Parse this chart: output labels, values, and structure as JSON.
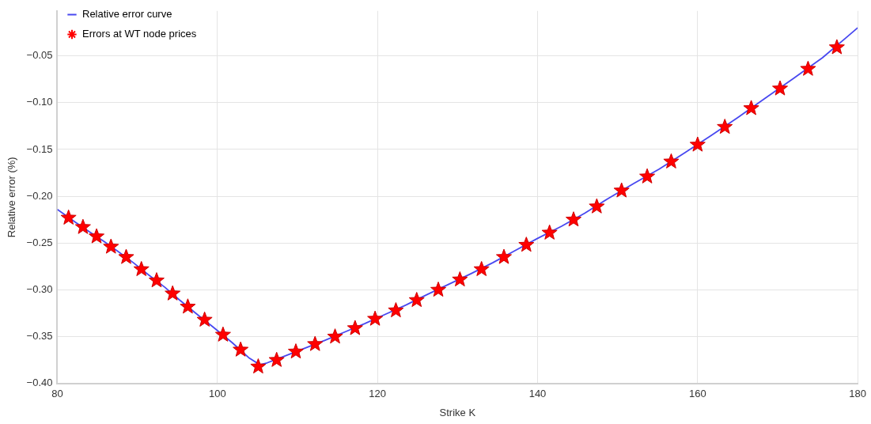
{
  "chart_data": {
    "type": "line",
    "xlabel": "Strike K",
    "ylabel": "Relative error (%)",
    "xlim": [
      80,
      180
    ],
    "xticks": [
      80,
      100,
      120,
      140,
      160,
      180
    ],
    "ylim": [
      -0.4,
      -0.002
    ],
    "yticks": [
      {
        "value": -0.4,
        "label": "−0.40"
      },
      {
        "value": -0.35,
        "label": "−0.35"
      },
      {
        "value": -0.3,
        "label": "−0.30"
      },
      {
        "value": -0.25,
        "label": "−0.25"
      },
      {
        "value": -0.2,
        "label": "−0.20"
      },
      {
        "value": -0.15,
        "label": "−0.15"
      },
      {
        "value": -0.1,
        "label": "−0.10"
      },
      {
        "value": -0.05,
        "label": "−0.05"
      }
    ],
    "grid": true,
    "legend": "top left",
    "series": [
      {
        "name": "Relative error curve",
        "color": "#4848f0",
        "line_style": "solid",
        "x": [
          80,
          82.3,
          84.0,
          85.8,
          87.6,
          89.5,
          91.4,
          93.4,
          95.3,
          97.3,
          99.5,
          101.8,
          104.0,
          105.3,
          106.2,
          108.6,
          111.0,
          113.4,
          115.9,
          118.4,
          121.0,
          123.6,
          126.2,
          128.9,
          131.6,
          134.4,
          137.2,
          140.0,
          143.0,
          145.9,
          148.9,
          152.1,
          155.2,
          158.3,
          161.7,
          165.0,
          168.5,
          172.0,
          175.6,
          178.5,
          180
        ],
        "values": [
          -0.214,
          -0.228,
          -0.238,
          -0.248,
          -0.259,
          -0.271,
          -0.284,
          -0.297,
          -0.311,
          -0.325,
          -0.34,
          -0.356,
          -0.373,
          -0.38,
          -0.378,
          -0.37,
          -0.362,
          -0.354,
          -0.345,
          -0.336,
          -0.326,
          -0.316,
          -0.305,
          -0.294,
          -0.283,
          -0.271,
          -0.258,
          -0.245,
          -0.232,
          -0.218,
          -0.202,
          -0.186,
          -0.171,
          -0.154,
          -0.135,
          -0.116,
          -0.095,
          -0.074,
          -0.052,
          -0.031,
          -0.02
        ]
      },
      {
        "name": "Errors at WT node prices",
        "type": "scatter",
        "color": "#ff0000",
        "marker": "star",
        "x": [
          81.4,
          83.2,
          84.9,
          86.7,
          88.6,
          90.5,
          92.4,
          94.4,
          96.3,
          98.4,
          100.7,
          102.9,
          105.1,
          107.4,
          109.8,
          112.2,
          114.7,
          117.2,
          119.7,
          122.3,
          124.9,
          127.6,
          130.3,
          133.0,
          135.8,
          138.6,
          141.5,
          144.5,
          147.4,
          150.5,
          153.7,
          156.7,
          160.0,
          163.4,
          166.7,
          170.3,
          173.8,
          177.4
        ],
        "values": [
          -0.223,
          -0.233,
          -0.243,
          -0.254,
          -0.265,
          -0.278,
          -0.29,
          -0.304,
          -0.318,
          -0.332,
          -0.348,
          -0.364,
          -0.382,
          -0.375,
          -0.366,
          -0.358,
          -0.35,
          -0.341,
          -0.331,
          -0.322,
          -0.311,
          -0.3,
          -0.289,
          -0.278,
          -0.265,
          -0.252,
          -0.239,
          -0.225,
          -0.211,
          -0.194,
          -0.179,
          -0.163,
          -0.145,
          -0.126,
          -0.106,
          -0.085,
          -0.064,
          -0.041
        ]
      }
    ]
  }
}
